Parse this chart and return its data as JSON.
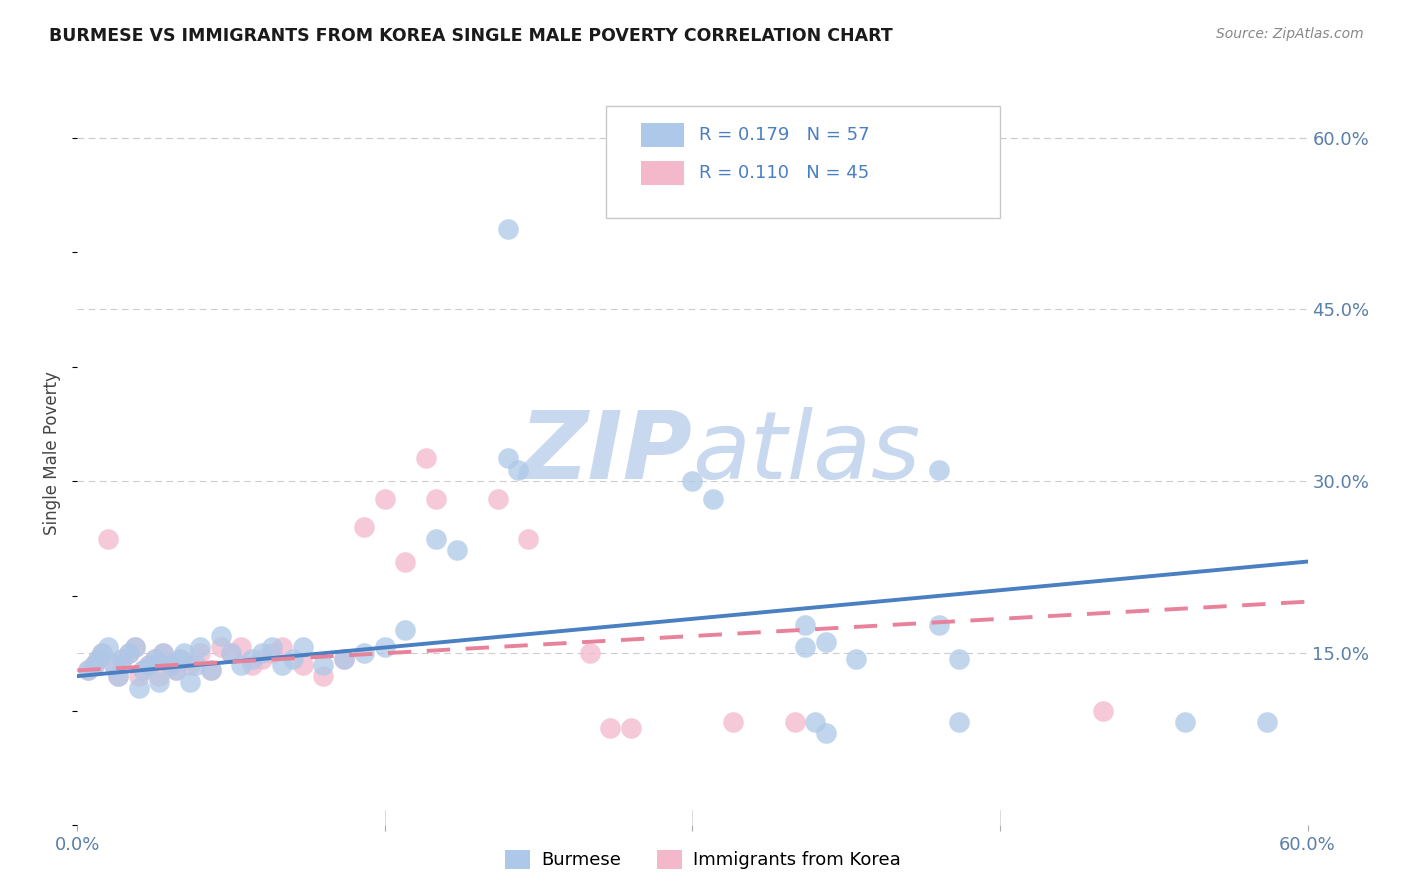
{
  "title": "BURMESE VS IMMIGRANTS FROM KOREA SINGLE MALE POVERTY CORRELATION CHART",
  "source": "Source: ZipAtlas.com",
  "ylabel": "Single Male Poverty",
  "y_tick_labels": [
    "15.0%",
    "30.0%",
    "45.0%",
    "60.0%"
  ],
  "y_tick_values": [
    0.15,
    0.3,
    0.45,
    0.6
  ],
  "x_range": [
    0.0,
    0.6
  ],
  "y_range": [
    0.0,
    0.65
  ],
  "legend_labels": [
    "Burmese",
    "Immigrants from Korea"
  ],
  "R_burmese": "0.179",
  "N_burmese": "57",
  "R_korea": "0.110",
  "N_korea": "45",
  "color_burmese": "#adc8e8",
  "color_korea": "#f4b8cb",
  "color_burmese_line": "#4a7fc1",
  "color_korea_line": "#e8819a",
  "watermark_zip": "ZIP",
  "watermark_atlas": "atlas",
  "watermark_color_zip": "#c8d8ee",
  "watermark_color_atlas": "#c8d8ee",
  "burmese_x": [
    0.005,
    0.008,
    0.01,
    0.012,
    0.015,
    0.018,
    0.02,
    0.022,
    0.025,
    0.028,
    0.03,
    0.032,
    0.035,
    0.038,
    0.04,
    0.042,
    0.045,
    0.048,
    0.05,
    0.052,
    0.055,
    0.058,
    0.06,
    0.065,
    0.07,
    0.075,
    0.08,
    0.085,
    0.09,
    0.095,
    0.1,
    0.105,
    0.11,
    0.12,
    0.13,
    0.14,
    0.15,
    0.16,
    0.175,
    0.185,
    0.21,
    0.215,
    0.3,
    0.31,
    0.355,
    0.36,
    0.365,
    0.38,
    0.42,
    0.43,
    0.355,
    0.365,
    0.42,
    0.43,
    0.54,
    0.58,
    0.21
  ],
  "burmese_y": [
    0.135,
    0.14,
    0.145,
    0.15,
    0.155,
    0.14,
    0.13,
    0.145,
    0.15,
    0.155,
    0.12,
    0.135,
    0.14,
    0.145,
    0.125,
    0.15,
    0.14,
    0.135,
    0.145,
    0.15,
    0.125,
    0.14,
    0.155,
    0.135,
    0.165,
    0.15,
    0.14,
    0.145,
    0.15,
    0.155,
    0.14,
    0.145,
    0.155,
    0.14,
    0.145,
    0.15,
    0.155,
    0.17,
    0.25,
    0.24,
    0.32,
    0.31,
    0.3,
    0.285,
    0.155,
    0.09,
    0.08,
    0.145,
    0.31,
    0.09,
    0.175,
    0.16,
    0.175,
    0.145,
    0.09,
    0.09,
    0.52
  ],
  "korea_x": [
    0.005,
    0.008,
    0.01,
    0.012,
    0.015,
    0.018,
    0.02,
    0.022,
    0.025,
    0.028,
    0.03,
    0.032,
    0.035,
    0.038,
    0.04,
    0.042,
    0.045,
    0.048,
    0.05,
    0.055,
    0.06,
    0.065,
    0.07,
    0.075,
    0.08,
    0.085,
    0.09,
    0.095,
    0.1,
    0.11,
    0.12,
    0.13,
    0.14,
    0.15,
    0.16,
    0.17,
    0.175,
    0.205,
    0.22,
    0.25,
    0.26,
    0.27,
    0.32,
    0.35,
    0.5
  ],
  "korea_y": [
    0.135,
    0.14,
    0.145,
    0.15,
    0.25,
    0.14,
    0.13,
    0.145,
    0.15,
    0.155,
    0.13,
    0.135,
    0.14,
    0.145,
    0.13,
    0.15,
    0.14,
    0.135,
    0.145,
    0.14,
    0.15,
    0.135,
    0.155,
    0.15,
    0.155,
    0.14,
    0.145,
    0.15,
    0.155,
    0.14,
    0.13,
    0.145,
    0.26,
    0.285,
    0.23,
    0.32,
    0.285,
    0.285,
    0.25,
    0.15,
    0.085,
    0.085,
    0.09,
    0.09,
    0.1
  ],
  "burmese_line_x": [
    0.0,
    0.6
  ],
  "burmese_line_y": [
    0.13,
    0.23
  ],
  "korea_line_x": [
    0.0,
    0.6
  ],
  "korea_line_y": [
    0.135,
    0.195
  ]
}
